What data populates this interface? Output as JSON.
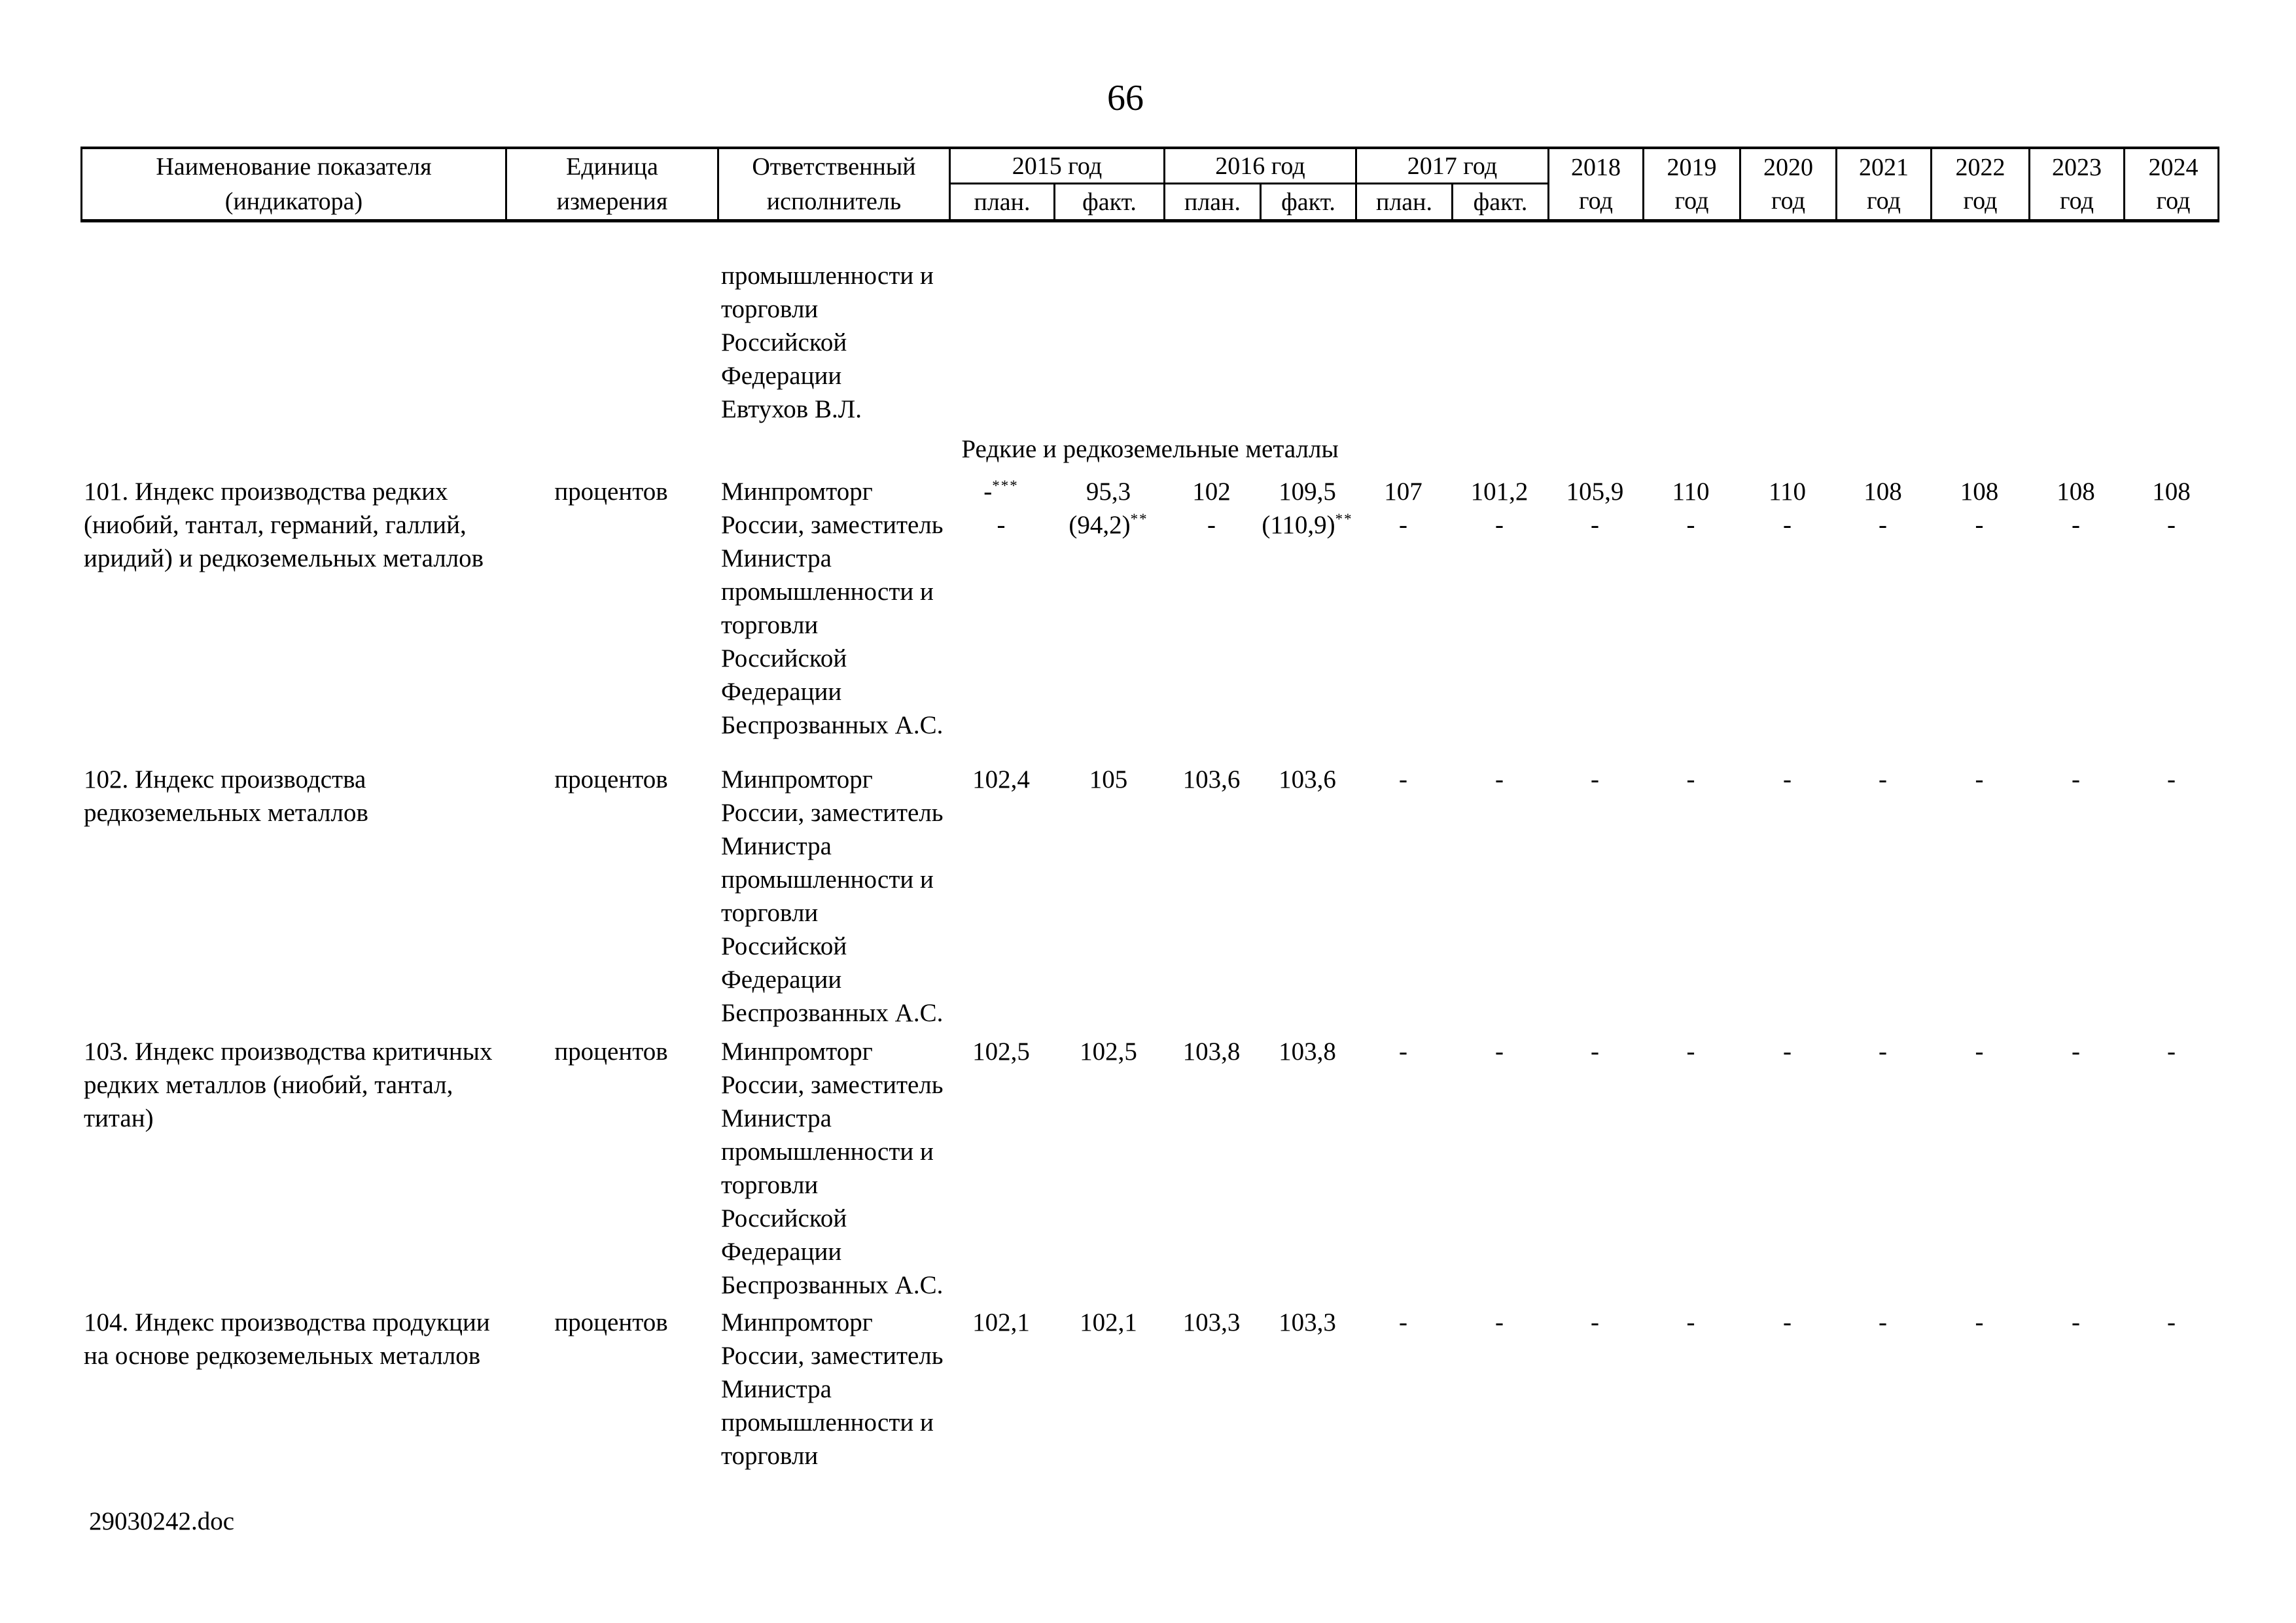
{
  "page": {
    "number": "66",
    "footer_filename": "29030242.doc",
    "colors": {
      "paper": "#ffffff",
      "ink": "#000000"
    }
  },
  "table": {
    "headers": {
      "name_lines": [
        "Наименование показателя",
        "(индикатора)"
      ],
      "unit_lines": [
        "Единица",
        "измерения"
      ],
      "executor_lines": [
        "Ответственный",
        "исполнитель"
      ],
      "year_groups": [
        "2015 год",
        "2016 год",
        "2017 год"
      ],
      "plan_label": "план.",
      "fact_label": "факт.",
      "years": [
        "2018",
        "2019",
        "2020",
        "2021",
        "2022",
        "2023",
        "2024"
      ],
      "year_word": "год"
    },
    "carryover_executor_lines": [
      "промышленности и",
      "торговли",
      "Российской",
      "Федерации",
      "Евтухов В.Л."
    ],
    "section_title": "Редкие и редкоземельные металлы",
    "rows": [
      {
        "name_lines": [
          "101. Индекс производства редких",
          "(ниобий, тантал, германий, галлий,",
          "иридий) и редкоземельных металлов"
        ],
        "unit": "процентов",
        "executor_lines": [
          "Минпромторг",
          "России, заместитель",
          "Министра",
          "промышленности и",
          "торговли",
          "Российской",
          "Федерации",
          "Беспрозванных А.С."
        ],
        "values_line1": [
          "-***",
          "95,3",
          "102",
          "109,5",
          "107",
          "101,2",
          "105,9",
          "110",
          "110",
          "108",
          "108",
          "108",
          "108"
        ],
        "values_line2": [
          "-",
          "(94,2)**",
          "-",
          "(110,9)**",
          "-",
          "-",
          "-",
          "-",
          "-",
          "-",
          "-",
          "-",
          "-"
        ]
      },
      {
        "name_lines": [
          "102. Индекс производства",
          "редкоземельных металлов"
        ],
        "unit": "процентов",
        "executor_lines": [
          "Минпромторг",
          "России, заместитель",
          "Министра",
          "промышленности и",
          "торговли",
          "Российской",
          "Федерации",
          "Беспрозванных А.С."
        ],
        "values_line1": [
          "102,4",
          "105",
          "103,6",
          "103,6",
          "-",
          "-",
          "-",
          "-",
          "-",
          "-",
          "-",
          "-",
          "-"
        ]
      },
      {
        "name_lines": [
          "103. Индекс производства критичных",
          "редких металлов (ниобий, тантал,",
          "титан)"
        ],
        "unit": "процентов",
        "executor_lines": [
          "Минпромторг",
          "России, заместитель",
          "Министра",
          "промышленности и",
          "торговли",
          "Российской",
          "Федерации",
          "Беспрозванных А.С."
        ],
        "values_line1": [
          "102,5",
          "102,5",
          "103,8",
          "103,8",
          "-",
          "-",
          "-",
          "-",
          "-",
          "-",
          "-",
          "-",
          "-"
        ]
      },
      {
        "name_lines": [
          "104. Индекс производства продукции",
          "на основе редкоземельных металлов"
        ],
        "unit": "процентов",
        "executor_lines": [
          "Минпромторг",
          "России, заместитель",
          "Министра",
          "промышленности и",
          "торговли"
        ],
        "values_line1": [
          "102,1",
          "102,1",
          "103,3",
          "103,3",
          "-",
          "-",
          "-",
          "-",
          "-",
          "-",
          "-",
          "-",
          "-"
        ]
      }
    ]
  }
}
